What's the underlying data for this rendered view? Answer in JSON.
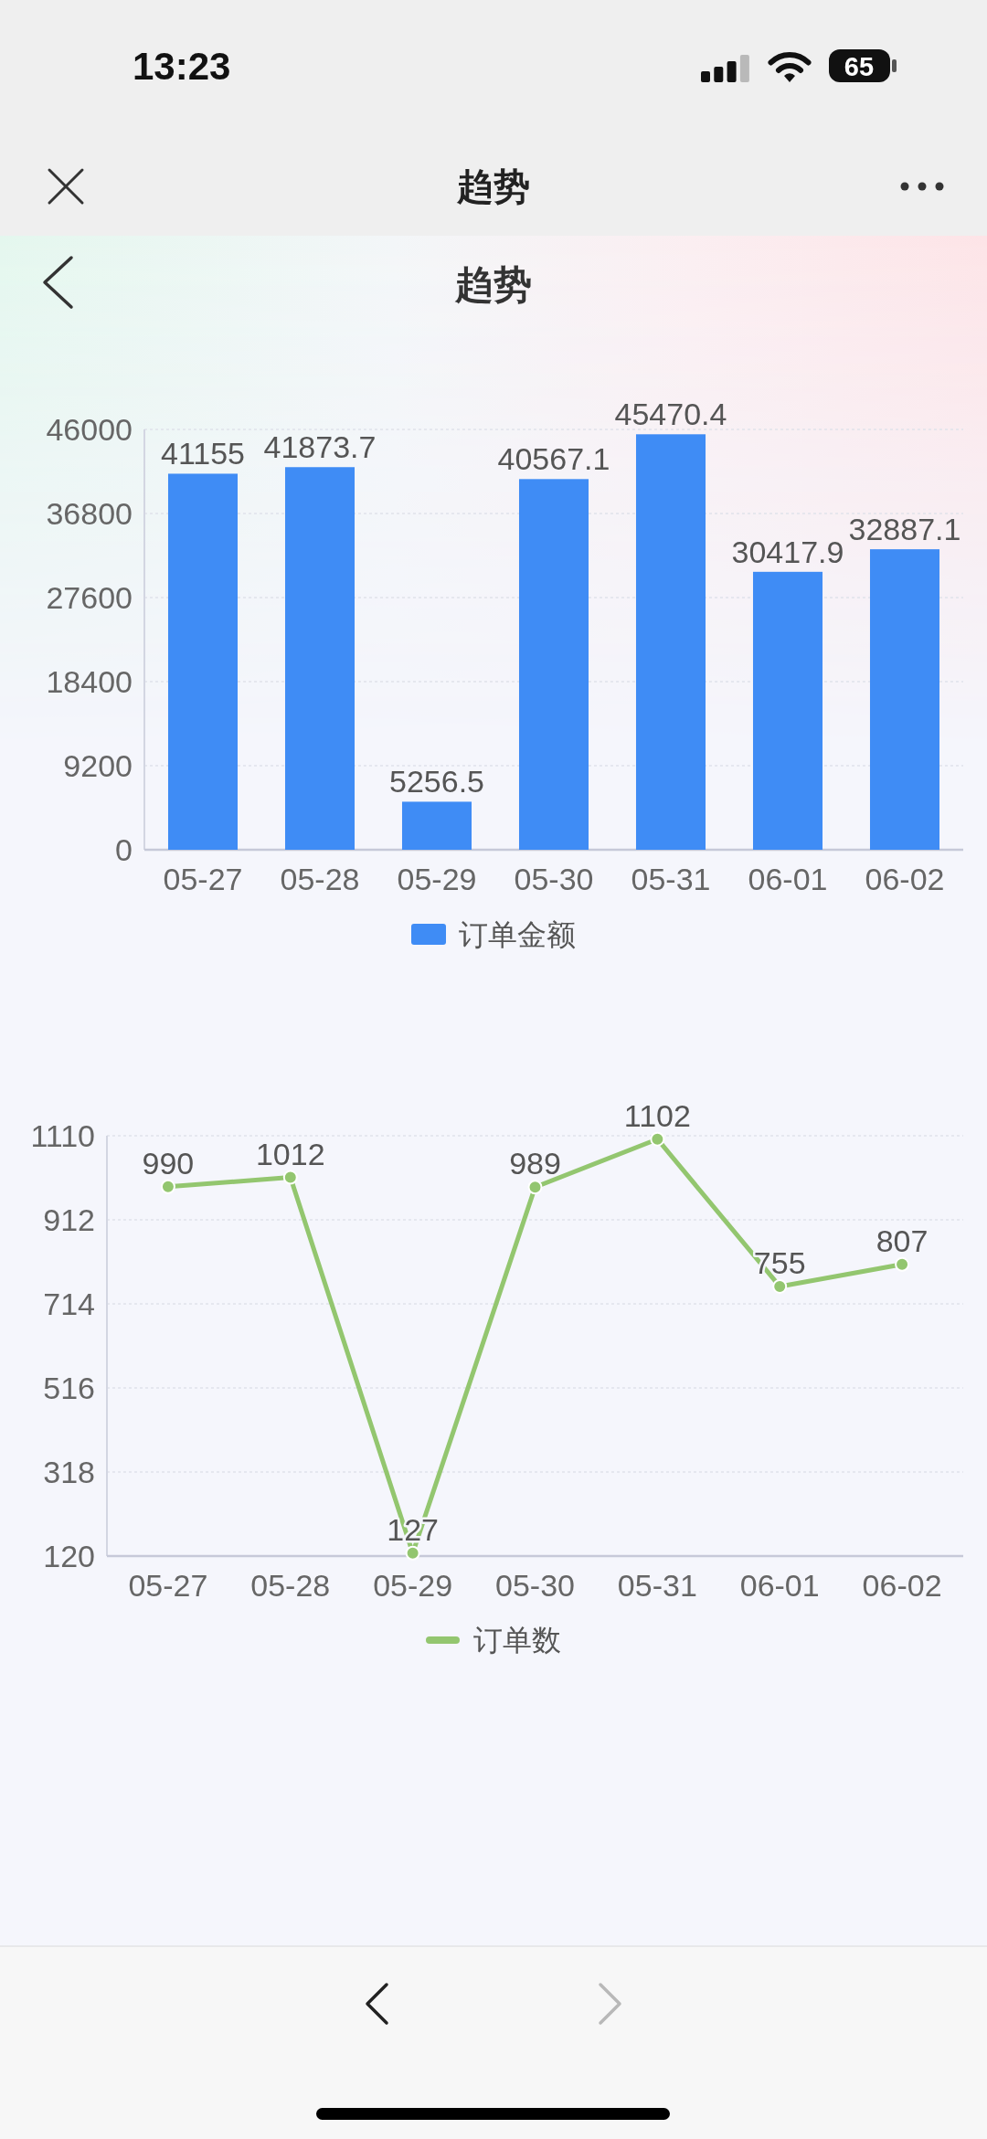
{
  "chart_data": [
    {
      "type": "bar",
      "title": "趋势",
      "annotations": [
        "13:23",
        "65",
        "趋势"
      ],
      "categories": [
        "05-27",
        "05-28",
        "05-29",
        "05-30",
        "05-31",
        "06-01",
        "06-02"
      ],
      "series": [
        {
          "name": "订单金额",
          "color": "#3f8cf5",
          "values": [
            41155,
            41873.7,
            5256.5,
            40567.1,
            45470.4,
            30417.9,
            32887.1
          ]
        }
      ],
      "ylim": [
        0,
        46000
      ],
      "yticks": [
        0,
        9200,
        18400,
        27600,
        36800,
        46000
      ],
      "grid": "y",
      "legend": "bottom",
      "data_labels": true
    },
    {
      "type": "line",
      "categories": [
        "05-27",
        "05-28",
        "05-29",
        "05-30",
        "05-31",
        "06-01",
        "06-02"
      ],
      "series": [
        {
          "name": "订单数",
          "color": "#93c66f",
          "values": [
            990,
            1012,
            127,
            989,
            1102,
            755,
            807
          ]
        }
      ],
      "ylim": [
        120,
        1110
      ],
      "yticks": [
        120,
        318,
        516,
        714,
        912,
        1110
      ],
      "grid": "y",
      "legend": "bottom",
      "data_labels": true,
      "marker": "circle",
      "line_style": "solid"
    }
  ]
}
